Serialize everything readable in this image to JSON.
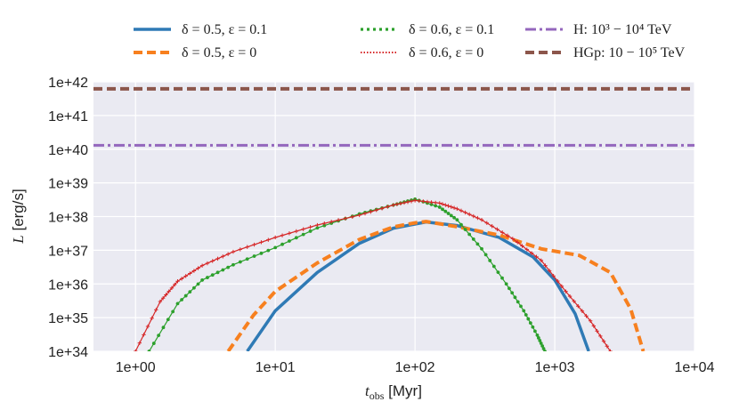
{
  "chart_data": {
    "type": "line",
    "xlabel": "t_obs [Myr]",
    "ylabel": "L [erg/s]",
    "xscale": "log",
    "yscale": "log",
    "xlim": [
      0.5,
      10000
    ],
    "ylim": [
      1e+34,
      1e+42
    ],
    "grid": true,
    "legend_position": "top",
    "xticks": [
      "1e+00",
      "1e+01",
      "1e+02",
      "1e+03",
      "1e+04"
    ],
    "yticks": [
      "1e+34",
      "1e+35",
      "1e+36",
      "1e+37",
      "1e+38",
      "1e+39",
      "1e+40",
      "1e+41",
      "1e+42"
    ],
    "series": [
      {
        "name": "δ = 0.5, ε = 0.1",
        "color": "#2f7ab5",
        "style": "solid",
        "x": [
          6.3,
          10,
          20,
          40,
          70,
          120,
          200,
          400,
          700,
          1000,
          1400,
          1750
        ],
        "y": [
          1e+34,
          1.6e+35,
          2.2e+36,
          1.6e+37,
          4.5e+37,
          6.9e+37,
          5.4e+37,
          2.4e+37,
          6.3e+36,
          1.3e+36,
          1.3e+35,
          1e+34
        ]
      },
      {
        "name": "δ = 0.5, ε = 0",
        "color": "#f7801f",
        "style": "dashed",
        "x": [
          4.6,
          7,
          10,
          20,
          40,
          70,
          100,
          120,
          200,
          400,
          800,
          1500,
          2500,
          3500,
          4300
        ],
        "y": [
          1e+34,
          1.2e+35,
          6e+35,
          4.2e+36,
          2.1e+37,
          4.9e+37,
          6.5e+37,
          7.1e+37,
          5e+37,
          2.8e+37,
          1.1e+37,
          7e+36,
          2.2e+36,
          1.8e+35,
          1e+34
        ]
      },
      {
        "name": "δ = 0.6, ε = 0.1",
        "color": "#2ca02c",
        "style": "dotted-markers",
        "x": [
          1.25,
          2,
          3,
          5,
          10,
          20,
          40,
          70,
          100,
          150,
          200,
          300,
          450,
          600,
          750,
          850
        ],
        "y": [
          1e+34,
          2.6e+35,
          1.3e+36,
          3.7e+36,
          1.2e+37,
          4.6e+37,
          1.2e+38,
          2.2e+38,
          3.3e+38,
          1.9e+38,
          8e+37,
          1.1e+37,
          1e+36,
          1.6e+35,
          3e+34,
          1e+34
        ]
      },
      {
        "name": "δ = 0.6, ε = 0",
        "color": "#d62728",
        "style": "plus-markers",
        "x": [
          1,
          1.5,
          2,
          3,
          5,
          10,
          20,
          40,
          70,
          100,
          150,
          200,
          300,
          500,
          800,
          1200,
          1800,
          2500
        ],
        "y": [
          1e+34,
          3e+35,
          1.2e+36,
          3.5e+36,
          9e+36,
          2.4e+37,
          5.6e+37,
          1.1e+38,
          2.2e+38,
          3e+38,
          2.5e+38,
          1.7e+38,
          8e+37,
          2.2e+37,
          5e+36,
          6e+35,
          8e+34,
          1e+34
        ]
      },
      {
        "name": "H: 10³ − 10⁴ TeV",
        "color": "#9467bd",
        "style": "dashdot",
        "x": [
          0.5,
          10000
        ],
        "y": [
          1.3e+40,
          1.3e+40
        ]
      },
      {
        "name": "HGp: 10 − 10⁵ TeV",
        "color": "#8c564b",
        "style": "dashed",
        "x": [
          0.5,
          10000
        ],
        "y": [
          6.2e+41,
          6.2e+41
        ]
      }
    ]
  }
}
